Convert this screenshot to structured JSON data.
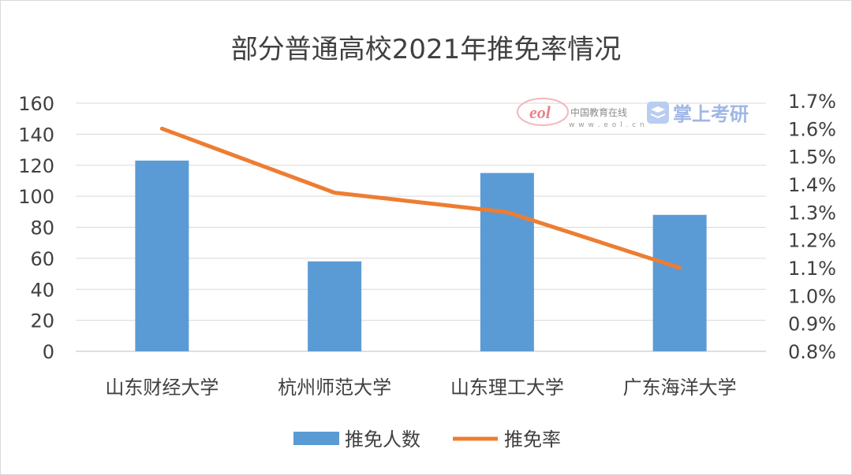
{
  "chart_data": {
    "type": "bar",
    "title": "部分普通高校2021年推免率情况",
    "categories": [
      "山东财经大学",
      "杭州师范大学",
      "山东理工大学",
      "广东海洋大学"
    ],
    "series": [
      {
        "name": "推免人数",
        "type": "bar",
        "axis": "left",
        "color": "#5b9bd5",
        "values": [
          123,
          58,
          115,
          88
        ]
      },
      {
        "name": "推免率",
        "type": "line",
        "axis": "right",
        "color": "#ed7d31",
        "values": [
          1.6,
          1.37,
          1.3,
          1.1
        ]
      }
    ],
    "ylim_left": [
      0,
      160
    ],
    "yticks_left": [
      "160",
      "140",
      "120",
      "100",
      "80",
      "60",
      "40",
      "20",
      "0"
    ],
    "ylim_right": [
      0.8,
      1.7
    ],
    "yticks_right": [
      "1.7%",
      "1.6%",
      "1.5%",
      "1.4%",
      "1.3%",
      "1.2%",
      "1.1%",
      "1.0%",
      "0.9%",
      "0.8%"
    ],
    "grid": true,
    "legend_position": "bottom"
  },
  "watermark": {
    "eol_logo_text": "eol",
    "eol_name": "中国教育在线",
    "eol_url": "w w w . e o l . c n",
    "brand_text": "掌上考研"
  }
}
